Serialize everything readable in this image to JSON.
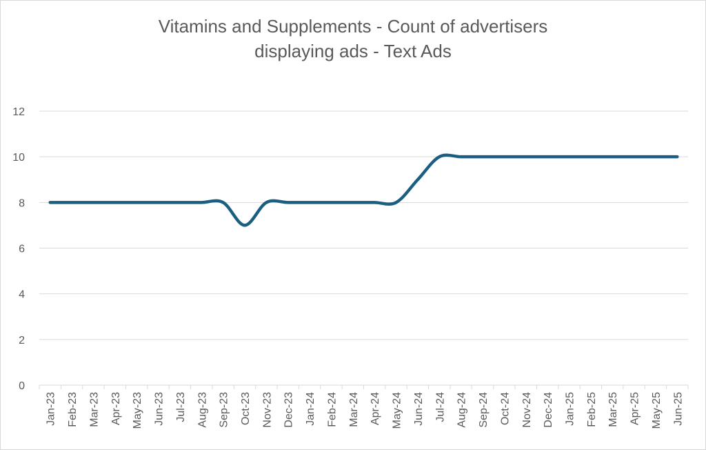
{
  "chart_data": {
    "type": "line",
    "title_line1": "Vitamins and Supplements - Count of advertisers",
    "title_line2": "displaying ads - Text Ads",
    "xlabel": "",
    "ylabel": "",
    "ylim": [
      0,
      12
    ],
    "yticks": [
      "0",
      "2",
      "4",
      "6",
      "8",
      "10",
      "12"
    ],
    "grid": true,
    "smoothed": true,
    "line_color": "#1B5E80",
    "categories": [
      "Jan-23",
      "Feb-23",
      "Mar-23",
      "Apr-23",
      "May-23",
      "Jun-23",
      "Jul-23",
      "Aug-23",
      "Sep-23",
      "Oct-23",
      "Nov-23",
      "Dec-23",
      "Jan-24",
      "Feb-24",
      "Mar-24",
      "Apr-24",
      "May-24",
      "Jun-24",
      "Jul-24",
      "Aug-24",
      "Sep-24",
      "Oct-24",
      "Nov-24",
      "Dec-24",
      "Jan-25",
      "Feb-25",
      "Mar-25",
      "Apr-25",
      "May-25",
      "Jun-25"
    ],
    "values": [
      8,
      8,
      8,
      8,
      8,
      8,
      8,
      8,
      8,
      7,
      8,
      8,
      8,
      8,
      8,
      8,
      8,
      9,
      10,
      10,
      10,
      10,
      10,
      10,
      10,
      10,
      10,
      10,
      10,
      10
    ]
  }
}
